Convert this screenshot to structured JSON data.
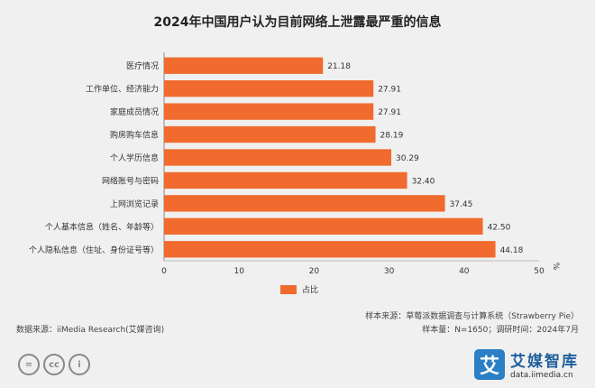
{
  "chart_data": {
    "type": "bar",
    "orientation": "horizontal",
    "title": "2024年中国用户认为目前网络上泄露最严重的信息",
    "categories": [
      "个人隐私信息（住址、身份证号等）",
      "个人基本信息（姓名、年龄等）",
      "上网浏览记录",
      "网络账号与密码",
      "个人学历信息",
      "购房购车信息",
      "家庭成员情况",
      "工作单位、经济能力",
      "医疗情况"
    ],
    "series": [
      {
        "name": "占比",
        "values": [
          44.18,
          42.5,
          37.45,
          32.4,
          30.29,
          28.19,
          27.91,
          27.91,
          21.18
        ],
        "color": "#f06b2d"
      }
    ],
    "value_labels": [
      "44.18",
      "42.50",
      "37.45",
      "32.40",
      "30.29",
      "28.19",
      "27.91",
      "27.91",
      "21.18"
    ],
    "xlim": [
      0,
      50
    ],
    "x_ticks": [
      "0",
      "10",
      "20",
      "30",
      "40",
      "50"
    ],
    "x_unit": "%",
    "grid": false,
    "legend_position": "bottom"
  },
  "sources": {
    "sample_source": "样本来源：草莓派数据调查与计算系统（Strawberry Pie）",
    "sample_info": "样本量：N=1650；调研时间：2024年7月",
    "data_source": "数据来源：iiMedia Research(艾媒咨询)"
  },
  "brand": {
    "icon_char": "艾",
    "name": "艾媒智库",
    "url": "data.iimedia.cn"
  },
  "license_icons": [
    "=",
    "cc",
    "i"
  ]
}
